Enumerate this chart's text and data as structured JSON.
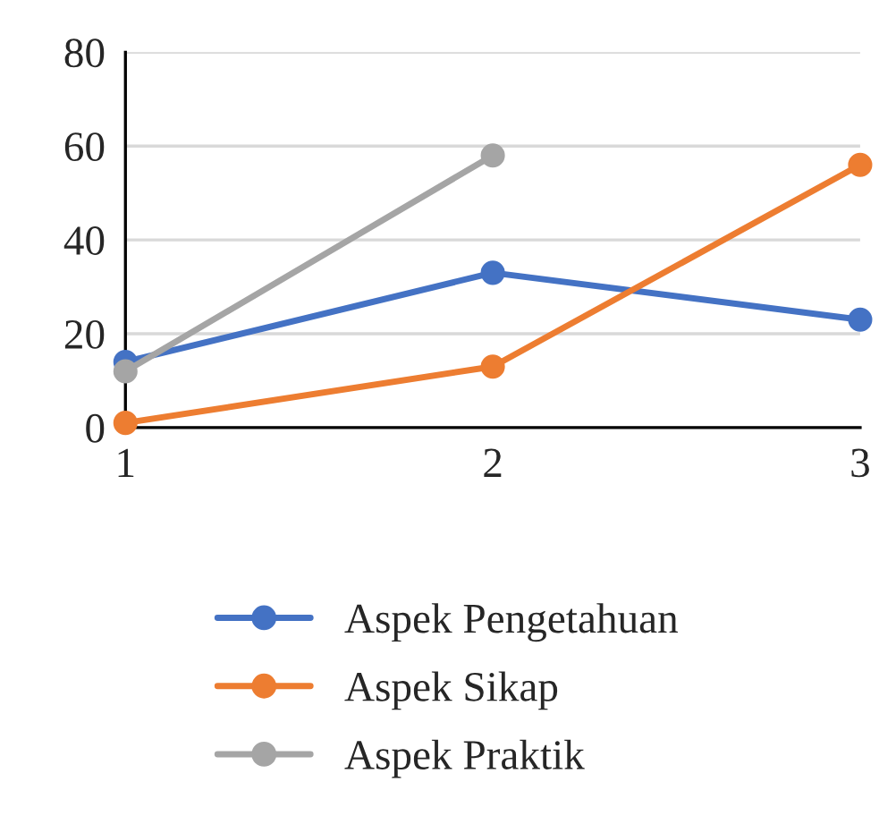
{
  "chart_data": {
    "type": "line",
    "categories": [
      "1",
      "2",
      "3"
    ],
    "series": [
      {
        "name": "Aspek Pengetahuan",
        "color": "#4472c4",
        "values": [
          14,
          33,
          23
        ]
      },
      {
        "name": "Aspek Sikap",
        "color": "#ed7d31",
        "values": [
          1,
          13,
          56
        ]
      },
      {
        "name": "Aspek Praktik",
        "color": "#a5a5a5",
        "values": [
          12,
          58,
          null
        ]
      }
    ],
    "ylim": [
      0,
      80
    ],
    "yticks": [
      0,
      20,
      40,
      60,
      80
    ],
    "grid": "y",
    "legend": "bottom",
    "marker": "circle",
    "line_style": "solid"
  }
}
